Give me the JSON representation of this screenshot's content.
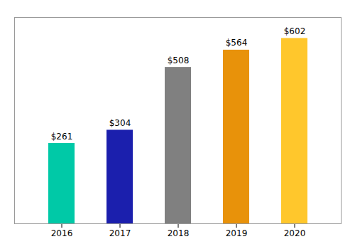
{
  "chart_data": {
    "type": "bar",
    "categories": [
      "2016",
      "2017",
      "2018",
      "2019",
      "2020"
    ],
    "values": [
      261,
      304,
      508,
      564,
      602
    ],
    "value_labels": [
      "$261",
      "$304",
      "$508",
      "$564",
      "$602"
    ],
    "colors": [
      "#00C9A7",
      "#1B1FAD",
      "#808080",
      "#E8920A",
      "#FFC72C"
    ],
    "ylim": [
      0,
      670
    ],
    "data_labels": true,
    "tick_labels": "x"
  }
}
